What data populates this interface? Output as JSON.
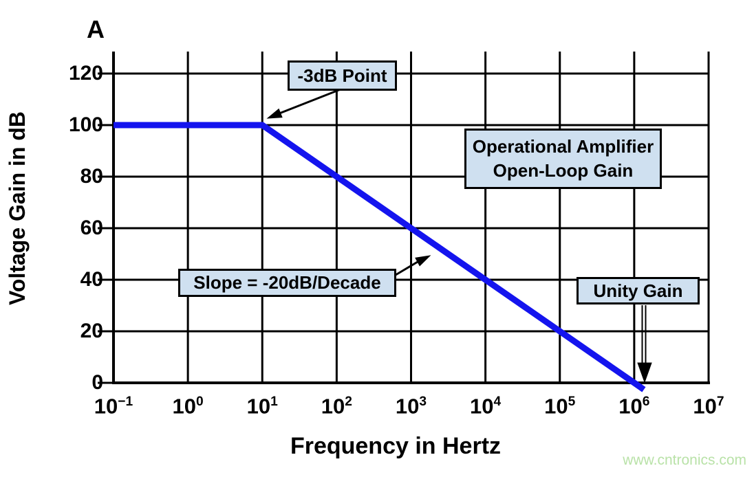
{
  "page": {
    "watermark": "www.cntronics.com",
    "watermark_color": "#b9e2a8"
  },
  "chart_data": {
    "type": "line",
    "title": "A",
    "xlabel": "Frequency in Hertz",
    "ylabel": "Voltage Gain in dB",
    "x_scale": "log10",
    "grid": true,
    "xlim_log10": [
      -1,
      7
    ],
    "ylim": [
      0,
      120
    ],
    "x_ticks": [
      {
        "base": "10",
        "exp": "−1"
      },
      {
        "base": "10",
        "exp": "0"
      },
      {
        "base": "10",
        "exp": "1"
      },
      {
        "base": "10",
        "exp": "2"
      },
      {
        "base": "10",
        "exp": "3"
      },
      {
        "base": "10",
        "exp": "4"
      },
      {
        "base": "10",
        "exp": "5"
      },
      {
        "base": "10",
        "exp": "6"
      },
      {
        "base": "10",
        "exp": "7"
      }
    ],
    "y_ticks": [
      120,
      100,
      80,
      60,
      40,
      20,
      0
    ],
    "series": [
      {
        "name": "Operational Amplifier Open-Loop Gain",
        "color": "#1414ee",
        "points_log10x_db": [
          [
            -1,
            100
          ],
          [
            1,
            100
          ],
          [
            6,
            0
          ],
          [
            6.13,
            -2.6
          ]
        ]
      }
    ],
    "annotations": {
      "minus3db": {
        "text": "-3dB Point",
        "points_at_log10x_db": [
          1,
          100
        ]
      },
      "oploop": {
        "line1": "Operational Amplifier",
        "line2": "Open-Loop Gain"
      },
      "slope": {
        "text": "Slope = -20dB/Decade"
      },
      "unity": {
        "text": "Unity Gain",
        "points_at_log10x_db": [
          6,
          0
        ]
      }
    }
  }
}
